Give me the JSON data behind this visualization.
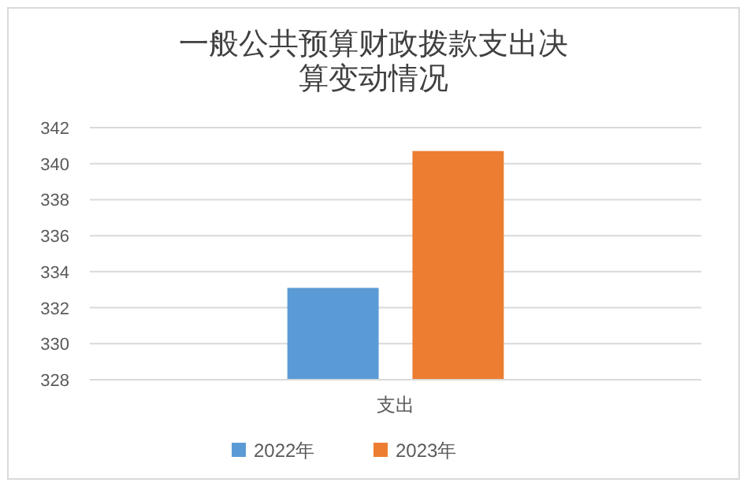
{
  "chart_data": {
    "type": "bar",
    "title": "一般公共预算财政拨款支出决算变动情况",
    "categories": [
      "支出"
    ],
    "series": [
      {
        "name": "2022年",
        "color": "#5b9bd5",
        "values": [
          333.1
        ]
      },
      {
        "name": "2023年",
        "color": "#ed7d31",
        "values": [
          340.7
        ]
      }
    ],
    "ylim": [
      328,
      342
    ],
    "yticks": [
      328,
      330,
      332,
      334,
      336,
      338,
      340,
      342
    ],
    "grid": "y",
    "legend": "bottom"
  }
}
